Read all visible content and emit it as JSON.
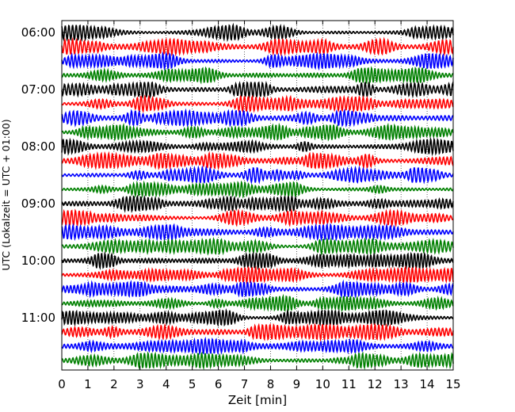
{
  "chart_data": {
    "type": "line",
    "title": "",
    "xlabel": "Zeit  [min]",
    "ylabel": "UTC (Lokalzeit = UTC + 01:00)",
    "xlim": [
      0,
      15
    ],
    "x_ticks": [
      "0",
      "1",
      "2",
      "3",
      "4",
      "5",
      "6",
      "7",
      "8",
      "9",
      "10",
      "11",
      "12",
      "13",
      "14",
      "15"
    ],
    "y_ticks": [
      "06:00",
      "07:00",
      "08:00",
      "09:00",
      "10:00",
      "11:00"
    ],
    "grid": "vertical dotted",
    "trace_minutes": 15,
    "traces_per_hour": 4,
    "start_time": "06:00",
    "end_time": "12:00",
    "trace_colors": [
      "#000000",
      "#ff0000",
      "#0000ff",
      "#008000"
    ]
  }
}
